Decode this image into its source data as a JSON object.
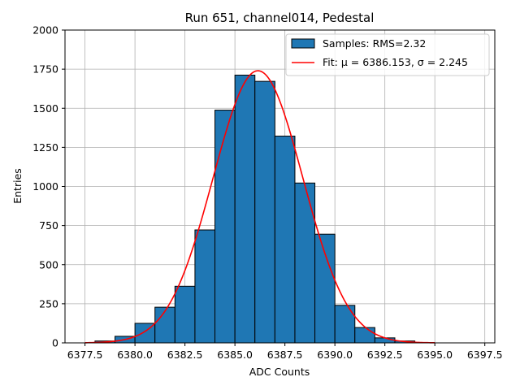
{
  "chart_data": {
    "type": "bar",
    "title": "Run 651, channel014, Pedestal",
    "xlabel": "ADC Counts",
    "ylabel": "Entries",
    "xlim": [
      6376.5,
      6398.0
    ],
    "ylim": [
      0,
      2000
    ],
    "grid": true,
    "legend_position": "top-right",
    "xticks": [
      "6377.5",
      "6380.0",
      "6382.5",
      "6385.0",
      "6387.5",
      "6390.0",
      "6392.5",
      "6395.0",
      "6397.5"
    ],
    "xtick_values": [
      6377.5,
      6380.0,
      6382.5,
      6385.0,
      6387.5,
      6390.0,
      6392.5,
      6395.0,
      6397.5
    ],
    "yticks": [
      "0",
      "250",
      "500",
      "750",
      "1000",
      "1250",
      "1500",
      "1750",
      "2000"
    ],
    "ytick_values": [
      0,
      250,
      500,
      750,
      1000,
      1250,
      1500,
      1750,
      2000
    ],
    "bin_edges": [
      6377.0,
      6378.0,
      6379.0,
      6380.0,
      6381.0,
      6382.0,
      6383.0,
      6384.0,
      6385.0,
      6386.0,
      6387.0,
      6388.0,
      6389.0,
      6390.0,
      6391.0,
      6392.0,
      6393.0,
      6394.0,
      6395.0
    ],
    "counts": [
      0,
      12,
      42,
      125,
      228,
      362,
      722,
      1488,
      1712,
      1672,
      1322,
      1022,
      695,
      240,
      98,
      32,
      12,
      0
    ],
    "series": [
      {
        "name": "Samples: RMS=2.32",
        "kind": "histogram",
        "color": "#1f77b4",
        "edgecolor": "#000000"
      },
      {
        "name": "Fit: μ = 6386.153, σ = 2.245",
        "kind": "gaussian-fit",
        "color": "#ff0000",
        "mu": 6386.153,
        "sigma": 2.245,
        "amplitude": 1740,
        "x_range": [
          6377.5,
          6395.0
        ]
      }
    ]
  }
}
